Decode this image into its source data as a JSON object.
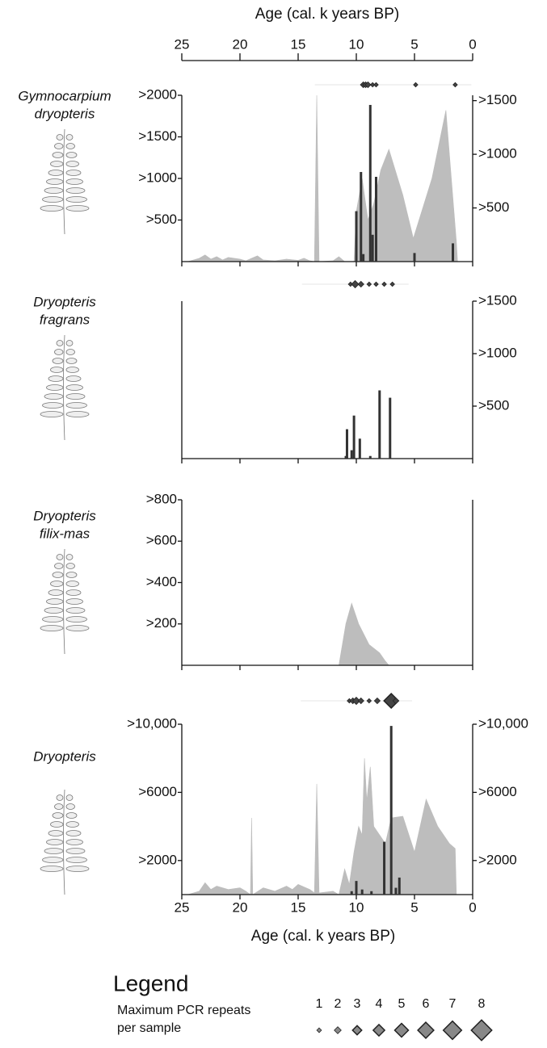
{
  "age_axis": {
    "label": "Age (cal. k years BP)",
    "xlim": [
      25,
      0
    ],
    "xticks": [
      25,
      20,
      15,
      10,
      5,
      0
    ]
  },
  "chart_data": [
    {
      "type": "combo",
      "taxon": [
        "Gymnocarpium",
        "dryopteris"
      ],
      "ylim": [
        0,
        2000
      ],
      "yticks": [
        {
          "value": 500,
          "label": ">500"
        },
        {
          "value": 1000,
          "label": ">1000"
        },
        {
          "value": 1500,
          "label": ">1500"
        },
        {
          "value": 2000,
          "label": ">2000"
        }
      ],
      "y2lim": [
        0,
        1550
      ],
      "y2ticks": [
        {
          "value": 500,
          "label": ">500"
        },
        {
          "value": 1000,
          "label": ">1000"
        },
        {
          "value": 1500,
          "label": ">1500"
        }
      ],
      "area": {
        "color": "#bdbdbd",
        "x": [
          24.5,
          23.5,
          23,
          22.5,
          22,
          21.5,
          21,
          20,
          19.5,
          19,
          18.5,
          18,
          17,
          16,
          15,
          14.5,
          14,
          13.6,
          13.4,
          13.2,
          12,
          11.5,
          11,
          10.2,
          10,
          9.5,
          9,
          8.5,
          7.9,
          7.2,
          6,
          5.1,
          3.5,
          2.3,
          1.4,
          1.3
        ],
        "values": [
          0,
          40,
          80,
          30,
          60,
          20,
          50,
          30,
          10,
          40,
          70,
          20,
          10,
          30,
          15,
          40,
          10,
          0,
          2000,
          0,
          10,
          60,
          0,
          0,
          600,
          1000,
          500,
          700,
          1100,
          1350,
          800,
          280,
          1000,
          1820,
          240,
          0
        ]
      },
      "bars": {
        "color": "#333333",
        "axis": "y2",
        "x": [
          10.0,
          9.6,
          9.4,
          8.8,
          8.6,
          8.3,
          5.0,
          1.7
        ],
        "values": [
          470,
          835,
          70,
          1460,
          250,
          790,
          80,
          170
        ]
      },
      "pcr_repeats": {
        "color": "#444444",
        "x": [
          9.4,
          9.2,
          9.0,
          8.6,
          8.3,
          4.9,
          1.5
        ],
        "values": [
          2,
          2,
          2,
          1,
          1,
          1,
          1
        ]
      }
    },
    {
      "type": "combo",
      "taxon": [
        "Dryopteris",
        "fragrans"
      ],
      "y2lim": [
        0,
        1500
      ],
      "y2ticks": [
        {
          "value": 500,
          "label": ">500"
        },
        {
          "value": 1000,
          "label": ">1000"
        },
        {
          "value": 1500,
          "label": ">1500"
        }
      ],
      "bars": {
        "color": "#333333",
        "axis": "y2",
        "x": [
          10.9,
          10.8,
          10.4,
          10.2,
          9.7,
          8.8,
          8.0,
          7.1
        ],
        "values": [
          25,
          280,
          80,
          410,
          190,
          25,
          650,
          580
        ]
      },
      "pcr_repeats": {
        "color": "#444444",
        "x": [
          10.5,
          10.1,
          9.6,
          8.9,
          8.3,
          7.6,
          6.9
        ],
        "values": [
          1,
          3,
          2,
          1,
          1,
          1,
          1
        ]
      }
    },
    {
      "type": "combo",
      "taxon": [
        "Dryopteris",
        "filix-mas"
      ],
      "ylim": [
        0,
        800
      ],
      "yticks": [
        {
          "value": 200,
          "label": ">200"
        },
        {
          "value": 400,
          "label": ">400"
        },
        {
          "value": 600,
          "label": ">600"
        },
        {
          "value": 800,
          "label": ">800"
        }
      ],
      "area": {
        "color": "#bdbdbd",
        "x": [
          11.5,
          10.9,
          10.4,
          9.8,
          8.9,
          8.0,
          7.5,
          7.2
        ],
        "values": [
          0,
          200,
          300,
          200,
          100,
          60,
          20,
          0
        ]
      }
    },
    {
      "type": "combo",
      "taxon": [
        "Dryopteris"
      ],
      "ylim": [
        0,
        10000
      ],
      "yticks": [
        {
          "value": 2000,
          "label": ">2000"
        },
        {
          "value": 6000,
          "label": ">6000"
        },
        {
          "value": 10000,
          "label": ">10,000"
        }
      ],
      "y2lim": [
        0,
        10000
      ],
      "y2ticks": [
        {
          "value": 2000,
          "label": ">2000"
        },
        {
          "value": 6000,
          "label": ">6000"
        },
        {
          "value": 10000,
          "label": ">10,000"
        }
      ],
      "area": {
        "color": "#bdbdbd",
        "x": [
          24.5,
          23.5,
          23,
          22.5,
          22,
          21,
          20,
          19.5,
          19.1,
          19,
          18.9,
          18,
          17,
          16,
          15.5,
          15,
          14,
          13.6,
          13.4,
          13.2,
          12,
          11.5,
          11,
          10.6,
          10.2,
          9.8,
          9.5,
          9.3,
          9.1,
          8.8,
          8.5,
          7.5,
          7,
          6,
          5,
          4,
          3,
          2,
          1.5,
          1.4
        ],
        "values": [
          0,
          200,
          700,
          300,
          500,
          300,
          400,
          200,
          0,
          4500,
          0,
          400,
          200,
          500,
          300,
          600,
          300,
          100,
          6500,
          100,
          200,
          0,
          1500,
          600,
          2500,
          4000,
          3500,
          8000,
          5500,
          7500,
          4000,
          3000,
          4500,
          4600,
          2500,
          5600,
          4000,
          3000,
          2700,
          0
        ]
      },
      "bars": {
        "color": "#333333",
        "axis": "y2",
        "x": [
          10.4,
          10.0,
          9.5,
          8.7,
          7.6,
          7.0,
          6.6,
          6.3
        ],
        "values": [
          200,
          800,
          300,
          200,
          3100,
          9900,
          400,
          1000
        ]
      },
      "pcr_repeats": {
        "color": "#444444",
        "x": [
          10.6,
          10.3,
          10.0,
          9.6,
          8.9,
          8.2,
          7.0,
          6.6
        ],
        "values": [
          1,
          2,
          3,
          2,
          1,
          2,
          8,
          2
        ]
      }
    }
  ],
  "legend": {
    "title": "Legend",
    "caption": [
      "Maximum PCR repeats",
      "per sample"
    ],
    "categories": [
      1,
      2,
      3,
      4,
      5,
      6,
      7,
      8
    ],
    "color": "#888888"
  }
}
